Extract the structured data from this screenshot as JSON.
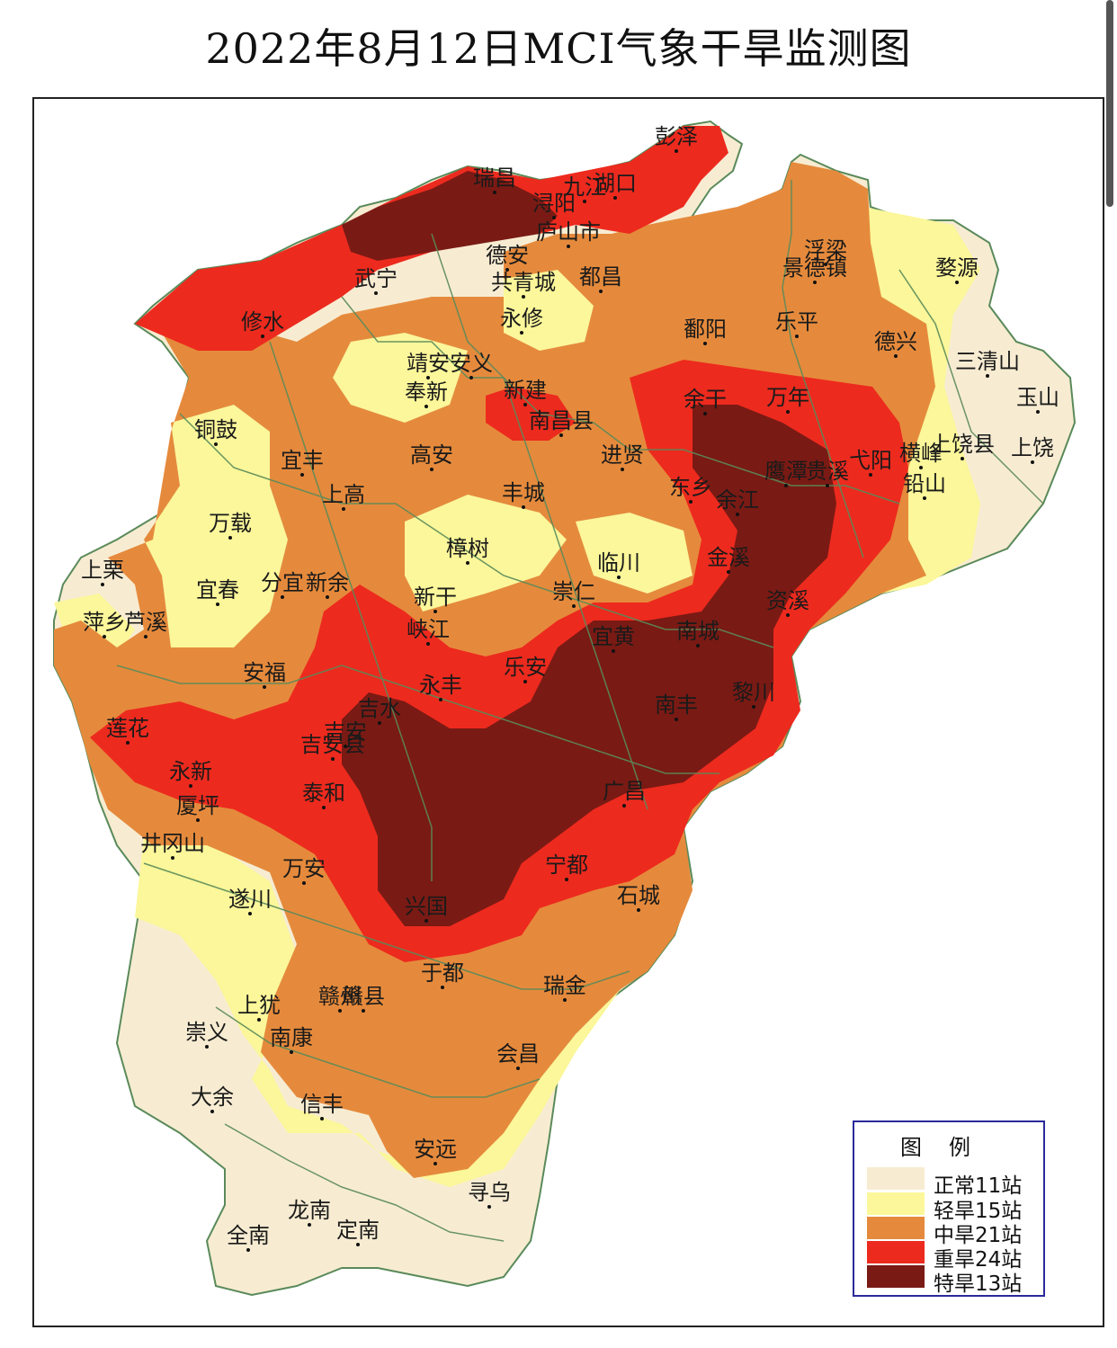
{
  "title": "2022年8月12日MCI气象干旱监测图",
  "colors": {
    "normal": "#f7ecd2",
    "light": "#fbf79a",
    "moderate": "#e58a3c",
    "severe": "#ed2a1e",
    "extreme": "#7a1a14",
    "border": "#5a8a5a",
    "legend_border": "#2a2a9a"
  },
  "legend": {
    "title": "图例",
    "items": [
      {
        "label": "正常11站",
        "color": "#f7ecd2"
      },
      {
        "label": "轻旱15站",
        "color": "#fbf79a"
      },
      {
        "label": "中旱21站",
        "color": "#e58a3c"
      },
      {
        "label": "重旱24站",
        "color": "#ed2a1e"
      },
      {
        "label": "特旱13站",
        "color": "#7a1a14"
      }
    ]
  },
  "cities": {
    "pengze": "彭泽",
    "ruichang": "瑞昌",
    "jiujiang": "九江",
    "hukou": "湖口",
    "xunyang": "浔阳",
    "lushan": "庐山市",
    "dean": "德安",
    "gongqing": "共青城",
    "duchang": "都昌",
    "yongxiu": "永修",
    "wuning": "武宁",
    "xiushui": "修水",
    "fuliang": "浮梁",
    "jingdezhen": "景德镇",
    "wuyuan": "婺源",
    "poyang": "鄱阳",
    "leping": "乐平",
    "dexing": "德兴",
    "sanqingshan": "三清山",
    "yushan": "玉山",
    "jingan": "靖安",
    "anyi": "安义",
    "fengxin": "奉新",
    "xinjian": "新建",
    "nanchang": "南昌县",
    "yugan": "余干",
    "wannian": "万年",
    "tonggu": "铜鼓",
    "yifeng": "宜丰",
    "gaoan": "高安",
    "jinxian": "进贤",
    "hengfeng": "横峰",
    "shangrao_county": "上饶县",
    "shangrao": "上饶",
    "yiyang": "弋阳",
    "guixi": "贵溪",
    "yingtan": "鹰潭",
    "qianshan": "铅山",
    "dongxiang": "东乡",
    "yujiang": "余江",
    "fengcheng": "丰城",
    "shanggao": "上高",
    "wanzai": "万载",
    "zhangshu": "樟树",
    "linchuan": "临川",
    "jinxi": "金溪",
    "shangli": "上栗",
    "yichun": "宜春",
    "fenyi": "分宜",
    "xinyu": "新余",
    "xingan": "新干",
    "chongren": "崇仁",
    "zixi": "资溪",
    "pingxiang": "萍乡",
    "luxi": "芦溪",
    "xiajiang": "峡江",
    "yihuang": "宜黄",
    "nancheng": "南城",
    "anfu": "安福",
    "yongfeng": "永丰",
    "lean": "乐安",
    "nanfeng": "南丰",
    "lichuan": "黎川",
    "jishui": "吉水",
    "lianhua": "莲花",
    "jian_county": "吉安县",
    "jian": "吉安",
    "yongxin": "永新",
    "taihe": "泰和",
    "guangchang": "广昌",
    "xiaping": "厦坪",
    "jinggangshan": "井冈山",
    "wanan": "万安",
    "ningdu": "宁都",
    "suichuan": "遂川",
    "xingguo": "兴国",
    "shicheng": "石城",
    "yudu": "于都",
    "ganxian": "赣县",
    "ganzhou": "赣州",
    "ruijin": "瑞金",
    "shangyou": "上犹",
    "chongyi": "崇义",
    "nankang": "南康",
    "huichang": "会昌",
    "dayu": "大余",
    "xinfeng": "信丰",
    "anyuan": "安远",
    "xunwu": "寻乌",
    "longnan": "龙南",
    "quannan": "全南",
    "dingnan": "定南"
  }
}
